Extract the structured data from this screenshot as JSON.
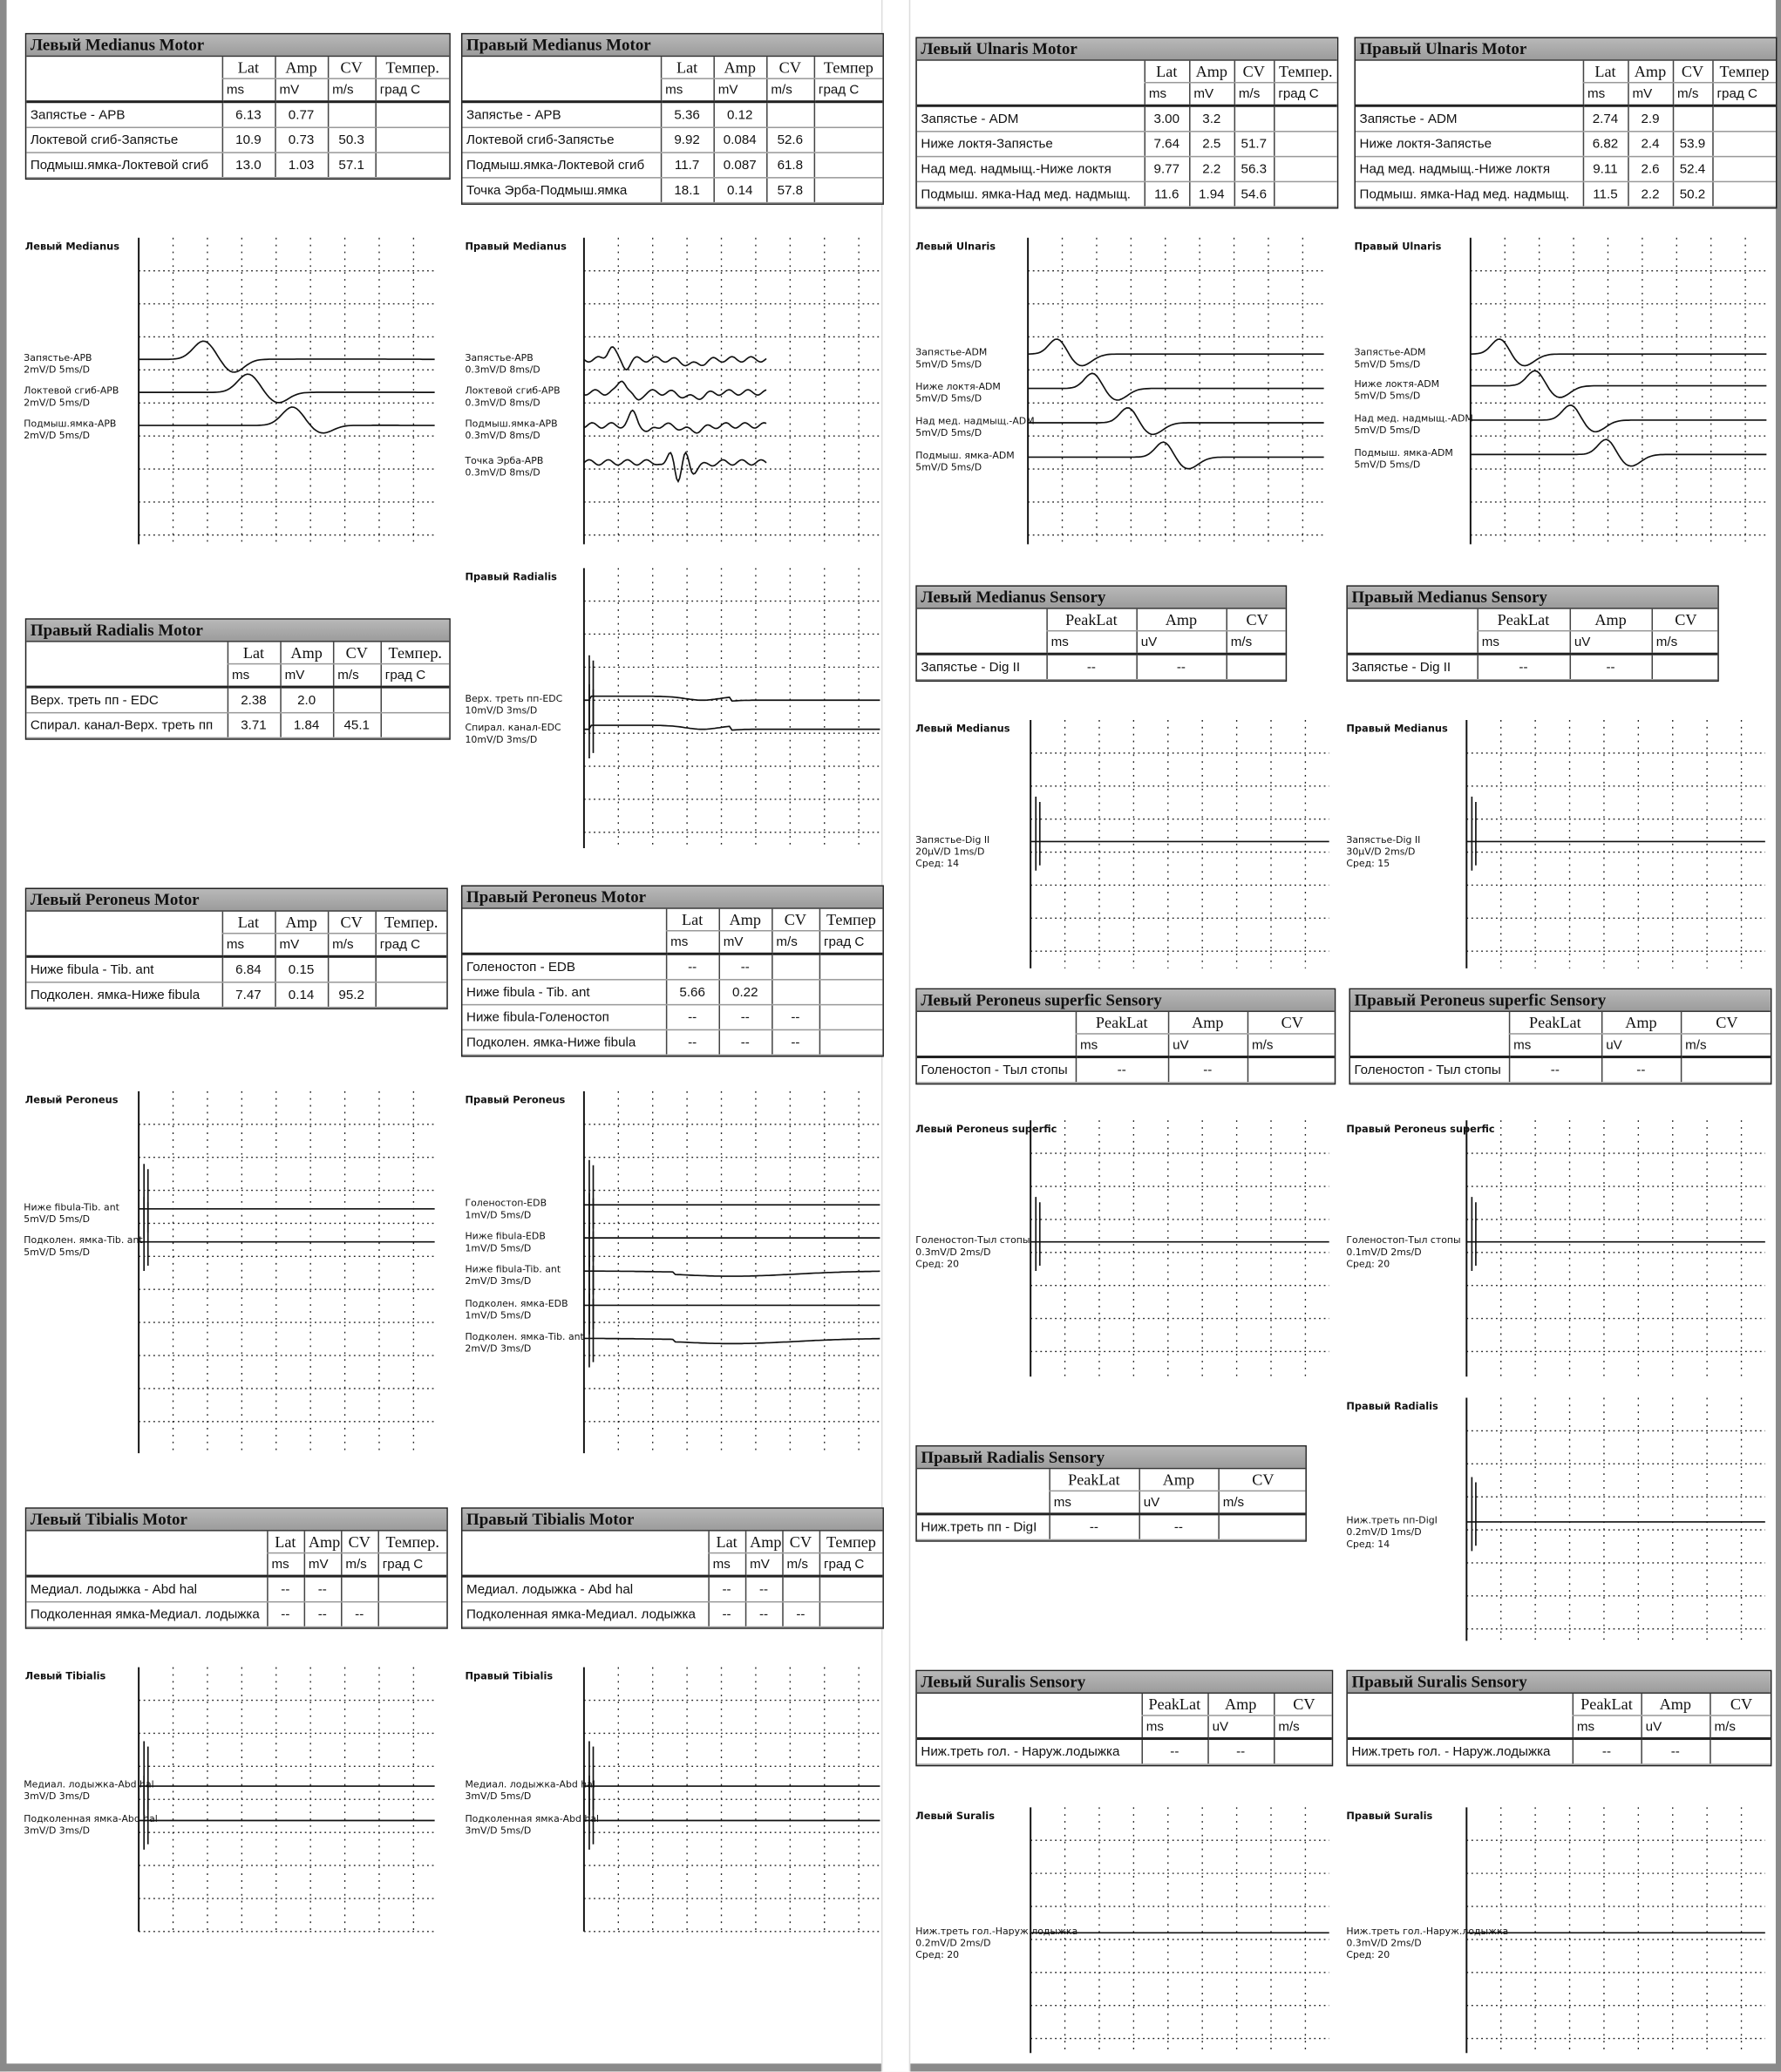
{
  "tables": [
    {
      "title": "Левый Medianus Motor",
      "cols": [
        "Lat",
        "Amp",
        "CV",
        "Темпер."
      ],
      "units": [
        "ms",
        "mV",
        "m/s",
        "град C"
      ],
      "rows": [
        [
          "Запястье - APB",
          "6.13",
          "0.77",
          "",
          ""
        ],
        [
          "Локтевой сгиб-Запястье",
          "10.9",
          "0.73",
          "50.3",
          ""
        ],
        [
          "Подмыш.ямка-Локтевой сгиб",
          "13.0",
          "1.03",
          "57.1",
          ""
        ]
      ]
    },
    {
      "title": "Правый Medianus Motor",
      "cols": [
        "Lat",
        "Amp",
        "CV",
        "Темпер"
      ],
      "units": [
        "ms",
        "mV",
        "m/s",
        "град C"
      ],
      "rows": [
        [
          "Запястье - APB",
          "5.36",
          "0.12",
          "",
          ""
        ],
        [
          "Локтевой сгиб-Запястье",
          "9.92",
          "0.084",
          "52.6",
          ""
        ],
        [
          "Подмыш.ямка-Локтевой сгиб",
          "11.7",
          "0.087",
          "61.8",
          ""
        ],
        [
          "Точка Эрба-Подмыш.ямка",
          "18.1",
          "0.14",
          "57.8",
          ""
        ]
      ]
    },
    {
      "title": "Левый Ulnaris Motor",
      "cols": [
        "Lat",
        "Amp",
        "CV",
        "Темпер."
      ],
      "units": [
        "ms",
        "mV",
        "m/s",
        "град C"
      ],
      "rows": [
        [
          "Запястье - ADM",
          "3.00",
          "3.2",
          "",
          ""
        ],
        [
          "Ниже локтя-Запястье",
          "7.64",
          "2.5",
          "51.7",
          ""
        ],
        [
          "Над мед. надмыщ.-Ниже локтя",
          "9.77",
          "2.2",
          "56.3",
          ""
        ],
        [
          "Подмыш. ямка-Над мед. надмыщ.",
          "11.6",
          "1.94",
          "54.6",
          ""
        ]
      ]
    },
    {
      "title": "Правый Ulnaris Motor",
      "cols": [
        "Lat",
        "Amp",
        "CV",
        "Темпер"
      ],
      "units": [
        "ms",
        "mV",
        "m/s",
        "град C"
      ],
      "rows": [
        [
          "Запястье - ADM",
          "2.74",
          "2.9",
          "",
          ""
        ],
        [
          "Ниже локтя-Запястье",
          "6.82",
          "2.4",
          "53.9",
          ""
        ],
        [
          "Над мед. надмыщ.-Ниже локтя",
          "9.11",
          "2.6",
          "52.4",
          ""
        ],
        [
          "Подмыш. ямка-Над мед. надмыщ.",
          "11.5",
          "2.2",
          "50.2",
          ""
        ]
      ]
    },
    {
      "title": "Правый Radialis Motor",
      "cols": [
        "Lat",
        "Amp",
        "CV",
        "Темпер."
      ],
      "units": [
        "ms",
        "mV",
        "m/s",
        "град C"
      ],
      "rows": [
        [
          "Верх. треть пп - EDC",
          "2.38",
          "2.0",
          "",
          ""
        ],
        [
          "Спирал. канал-Верх. треть пп",
          "3.71",
          "1.84",
          "45.1",
          ""
        ]
      ]
    },
    {
      "title": "Левый Peroneus Motor",
      "cols": [
        "Lat",
        "Amp",
        "CV",
        "Темпер."
      ],
      "units": [
        "ms",
        "mV",
        "m/s",
        "град C"
      ],
      "rows": [
        [
          "Ниже fibula - Tib. ant",
          "6.84",
          "0.15",
          "",
          ""
        ],
        [
          "Подколен. ямка-Ниже fibula",
          "7.47",
          "0.14",
          "95.2",
          ""
        ]
      ]
    },
    {
      "title": "Правый Peroneus Motor",
      "cols": [
        "Lat",
        "Amp",
        "CV",
        "Темпер"
      ],
      "units": [
        "ms",
        "mV",
        "m/s",
        "град C"
      ],
      "rows": [
        [
          "Голеностоп - EDB",
          "--",
          "--",
          "",
          ""
        ],
        [
          "Ниже fibula - Tib. ant",
          "5.66",
          "0.22",
          "",
          ""
        ],
        [
          "Ниже fibula-Голеностоп",
          "--",
          "--",
          "--",
          ""
        ],
        [
          "Подколен. ямка-Ниже fibula",
          "--",
          "--",
          "--",
          ""
        ]
      ]
    },
    {
      "title": "Левый Tibialis Motor",
      "cols": [
        "Lat",
        "Amp",
        "CV",
        "Темпер."
      ],
      "units": [
        "ms",
        "mV",
        "m/s",
        "град C"
      ],
      "rows": [
        [
          "Медиал. лодыжка - Abd hal",
          "--",
          "--",
          "",
          ""
        ],
        [
          "Подколенная ямка-Медиал. лодыжка",
          "--",
          "--",
          "--",
          ""
        ]
      ]
    },
    {
      "title": "Правый Tibialis Motor",
      "cols": [
        "Lat",
        "Amp",
        "CV",
        "Темпер"
      ],
      "units": [
        "ms",
        "mV",
        "m/s",
        "град C"
      ],
      "rows": [
        [
          "Медиал. лодыжка - Abd hal",
          "--",
          "--",
          "",
          ""
        ],
        [
          "Подколенная ямка-Медиал. лодыжка",
          "--",
          "--",
          "--",
          ""
        ]
      ]
    },
    {
      "title": "Левый Medianus Sensory",
      "cols": [
        "PeakLat",
        "Amp",
        "CV"
      ],
      "units": [
        "ms",
        "uV",
        "m/s"
      ],
      "rows": [
        [
          "Запястье - Dig II",
          "--",
          "--",
          ""
        ]
      ]
    },
    {
      "title": "Правый Medianus Sensory",
      "cols": [
        "PeakLat",
        "Amp",
        "CV"
      ],
      "units": [
        "ms",
        "uV",
        "m/s"
      ],
      "rows": [
        [
          "Запястье - Dig II",
          "--",
          "--",
          ""
        ]
      ]
    },
    {
      "title": "Левый Peroneus superfic Sensory",
      "cols": [
        "PeakLat",
        "Amp",
        "CV"
      ],
      "units": [
        "ms",
        "uV",
        "m/s"
      ],
      "rows": [
        [
          "Голеностоп - Тыл стопы",
          "--",
          "--",
          ""
        ]
      ]
    },
    {
      "title": "Правый Peroneus superfic Sensory",
      "cols": [
        "PeakLat",
        "Amp",
        "CV"
      ],
      "units": [
        "ms",
        "uV",
        "m/s"
      ],
      "rows": [
        [
          "Голеностоп - Тыл стопы",
          "--",
          "--",
          ""
        ]
      ]
    },
    {
      "title": "Правый Radialis Sensory",
      "cols": [
        "PeakLat",
        "Amp",
        "CV"
      ],
      "units": [
        "ms",
        "uV",
        "m/s"
      ],
      "rows": [
        [
          "Ниж.треть пп - DigI",
          "--",
          "--",
          ""
        ]
      ]
    },
    {
      "title": "Левый Suralis Sensory",
      "cols": [
        "PeakLat",
        "Amp",
        "CV"
      ],
      "units": [
        "ms",
        "uV",
        "m/s"
      ],
      "rows": [
        [
          "Ниж.треть гол. - Наруж.лодыжка",
          "--",
          "--",
          ""
        ]
      ]
    },
    {
      "title": "Правый Suralis Sensory",
      "cols": [
        "PeakLat",
        "Amp",
        "CV"
      ],
      "units": [
        "ms",
        "uV",
        "m/s"
      ],
      "rows": [
        [
          "Ниж.треть гол. - Наруж.лодыжка",
          "--",
          "--",
          ""
        ]
      ]
    }
  ],
  "charts": [
    {
      "title": "Левый Medianus",
      "traces": [
        [
          "Запястье-APB",
          "2mV/D 5ms/D"
        ],
        [
          "Локтевой сгиб-APB",
          "2mV/D 5ms/D"
        ],
        [
          "Подмыш.ямка-APB",
          "2mV/D 5ms/D"
        ]
      ]
    },
    {
      "title": "Правый Medianus",
      "traces": [
        [
          "Запястье-APB",
          "0.3mV/D 8ms/D"
        ],
        [
          "Локтевой сгиб-APB",
          "0.3mV/D 8ms/D"
        ],
        [
          "Подмыш.ямка-APB",
          "0.3mV/D 8ms/D"
        ],
        [
          "Точка Эрба-APB",
          "0.3mV/D 8ms/D"
        ]
      ]
    },
    {
      "title": "Правый Radialis",
      "traces": [
        [
          "Верх. треть пп-EDC",
          "10mV/D 3ms/D"
        ],
        [
          "Спирал. канал-EDC",
          "10mV/D 3ms/D"
        ]
      ]
    },
    {
      "title": "Левый Ulnaris",
      "traces": [
        [
          "Запястье-ADM",
          "5mV/D 5ms/D"
        ],
        [
          "Ниже локтя-ADM",
          "5mV/D 5ms/D"
        ],
        [
          "Над мед. надмыщ.-ADM",
          "5mV/D 5ms/D"
        ],
        [
          "Подмыш. ямка-ADM",
          "5mV/D 5ms/D"
        ]
      ]
    },
    {
      "title": "Правый Ulnaris",
      "traces": [
        [
          "Запястье-ADM",
          "5mV/D 5ms/D"
        ],
        [
          "Ниже локтя-ADM",
          "5mV/D 5ms/D"
        ],
        [
          "Над мед. надмыщ.-ADM",
          "5mV/D 5ms/D"
        ],
        [
          "Подмыш. ямка-ADM",
          "5mV/D 5ms/D"
        ]
      ]
    },
    {
      "title": "Левый Medianus",
      "traces": [
        [
          "Запястье-Dig II",
          "20μV/D 1ms/D",
          "Сред: 14"
        ]
      ]
    },
    {
      "title": "Правый Medianus",
      "traces": [
        [
          "Запястье-Dig II",
          "30μV/D 2ms/D",
          "Сред: 15"
        ]
      ]
    },
    {
      "title": "Левый Peroneus",
      "traces": [
        [
          "Ниже fibula-Tib. ant",
          "5mV/D 5ms/D"
        ],
        [
          "Подколен. ямка-Tib. ant",
          "5mV/D 5ms/D"
        ]
      ]
    },
    {
      "title": "Правый Peroneus",
      "traces": [
        [
          "Голеностоп-EDB",
          "1mV/D 5ms/D"
        ],
        [
          "Ниже fibula-EDB",
          "1mV/D 5ms/D"
        ],
        [
          "Ниже fibula-Tib. ant",
          "2mV/D 3ms/D"
        ],
        [
          "Подколен. ямка-EDB",
          "1mV/D 5ms/D"
        ],
        [
          "Подколен. ямка-Tib. ant",
          "2mV/D 3ms/D"
        ]
      ]
    },
    {
      "title": "Левый Peroneus superfic",
      "traces": [
        [
          "Голеностоп-Тыл стопы",
          "0.3mV/D 2ms/D",
          "Сред: 20"
        ]
      ]
    },
    {
      "title": "Правый Peroneus superfic",
      "traces": [
        [
          "Голеностоп-Тыл стопы",
          "0.1mV/D 2ms/D",
          "Сред: 20"
        ]
      ]
    },
    {
      "title": "Правый Radialis",
      "traces": [
        [
          "Ниж.треть пп-DigI",
          "0.2mV/D 1ms/D",
          "Сред: 14"
        ]
      ]
    },
    {
      "title": "Левый Tibialis",
      "traces": [
        [
          "Медиал. лодыжка-Abd hal",
          "3mV/D 3ms/D"
        ],
        [
          "Подколенная ямка-Abd hal",
          "3mV/D 3ms/D"
        ]
      ]
    },
    {
      "title": "Правый Tibialis",
      "traces": [
        [
          "Медиал. лодыжка-Abd hal",
          "3mV/D 5ms/D"
        ],
        [
          "Подколенная ямка-Abd hal",
          "3mV/D 5ms/D"
        ]
      ]
    },
    {
      "title": "Левый Suralis",
      "traces": [
        [
          "Ниж.треть гол.-Наруж.лодыжка",
          "0.2mV/D 2ms/D",
          "Сред: 20"
        ]
      ]
    },
    {
      "title": "Правый Suralis",
      "traces": [
        [
          "Ниж.треть гол.-Наруж.лодыжка",
          "0.3mV/D 2ms/D",
          "Сред: 20"
        ]
      ]
    }
  ]
}
